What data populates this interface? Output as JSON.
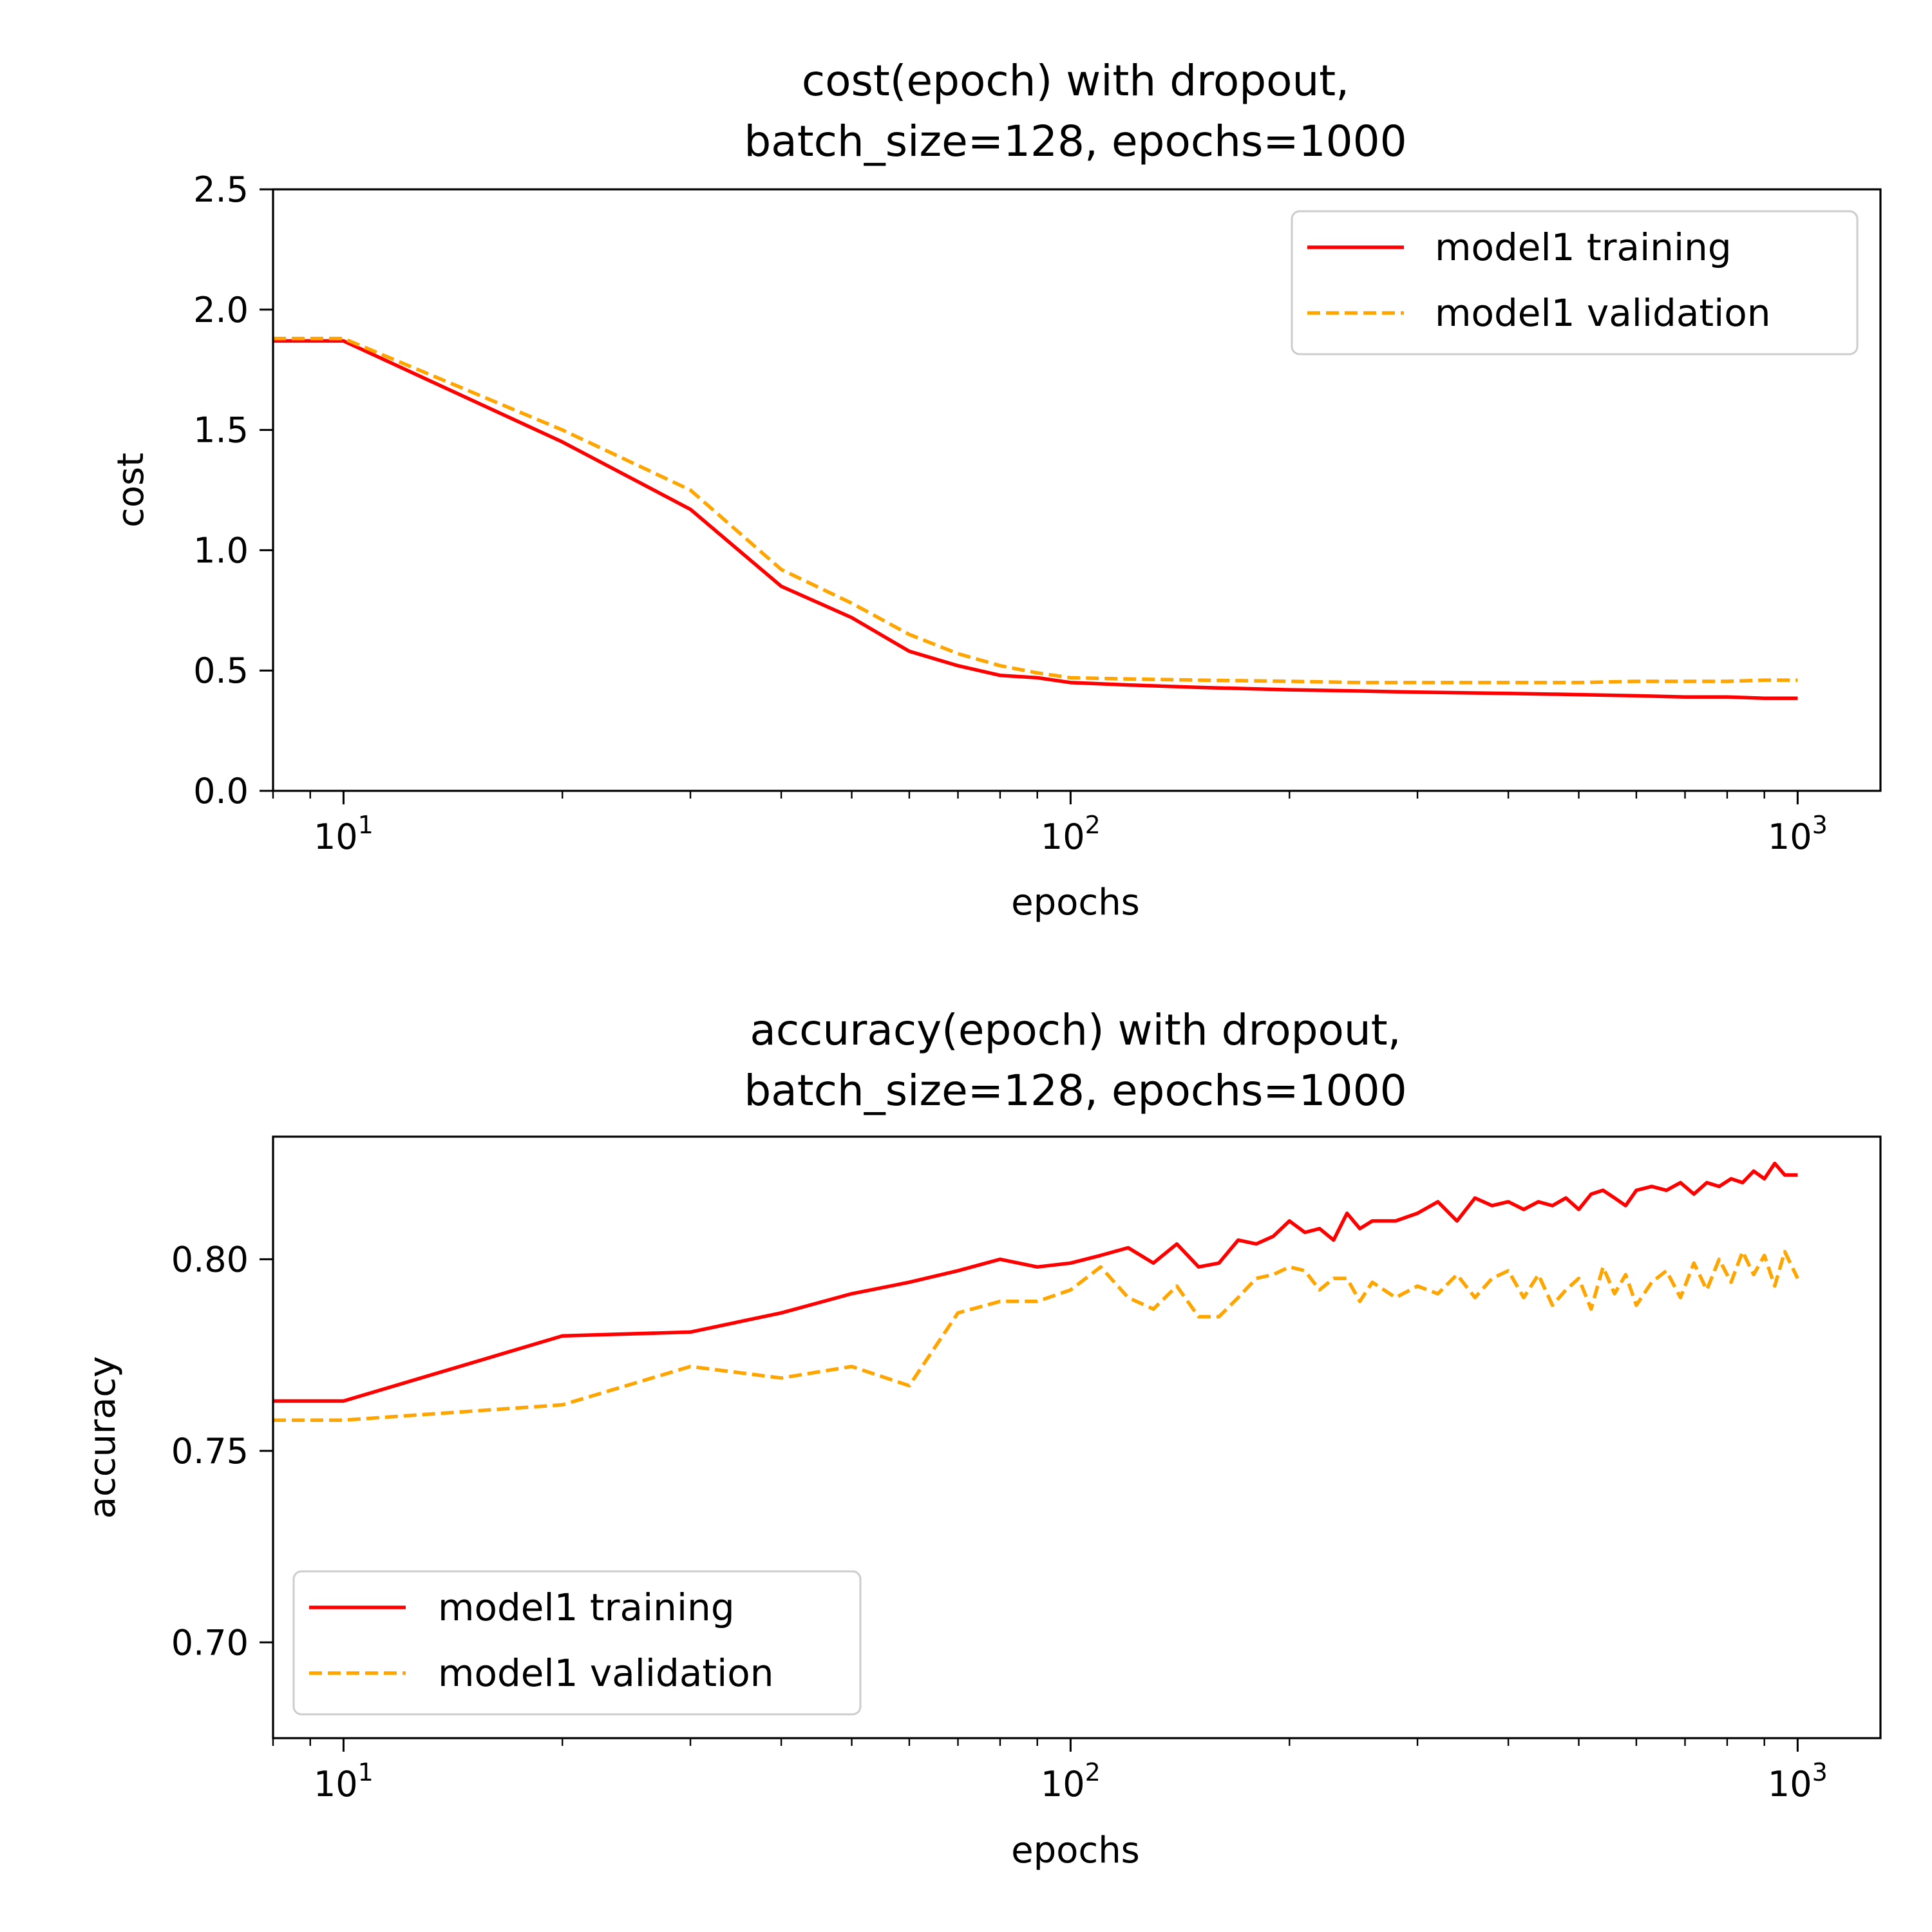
{
  "colors": {
    "training": "#ff0000",
    "validation": "#ffa500",
    "axes": "#000000",
    "background": "#ffffff"
  },
  "chart_data": [
    {
      "type": "line",
      "title_line1": "cost(epoch) with dropout,",
      "title_line2": "batch_size=128, epochs=1000",
      "xlabel": "epochs",
      "ylabel": "cost",
      "xscale": "log",
      "xlim": [
        8,
        1300
      ],
      "ylim": [
        0,
        2.5
      ],
      "xticks": [
        10,
        100,
        1000
      ],
      "xtick_labels": [
        {
          "base": "10",
          "exp": "1"
        },
        {
          "base": "10",
          "exp": "2"
        },
        {
          "base": "10",
          "exp": "3"
        }
      ],
      "yticks": [
        0,
        0.5,
        1.0,
        1.5,
        2.0,
        2.5
      ],
      "ytick_labels": [
        "0.0",
        "0.5",
        "1.0",
        "1.5",
        "2.0",
        "2.5"
      ],
      "legend_position": "top-right",
      "grid": false,
      "series": [
        {
          "name": "model1 training",
          "style": "solid",
          "x": [
            8,
            10,
            20,
            30,
            40,
            50,
            60,
            70,
            80,
            90,
            100,
            120,
            150,
            200,
            250,
            300,
            400,
            500,
            600,
            700,
            800,
            900,
            1000
          ],
          "y": [
            1.87,
            1.87,
            1.45,
            1.17,
            0.85,
            0.72,
            0.58,
            0.52,
            0.48,
            0.47,
            0.45,
            0.44,
            0.43,
            0.42,
            0.415,
            0.41,
            0.405,
            0.4,
            0.395,
            0.39,
            0.39,
            0.385,
            0.385
          ]
        },
        {
          "name": "model1 validation",
          "style": "dashed",
          "x": [
            8,
            10,
            20,
            30,
            40,
            50,
            60,
            70,
            80,
            90,
            100,
            120,
            150,
            200,
            250,
            300,
            400,
            500,
            600,
            700,
            800,
            900,
            1000
          ],
          "y": [
            1.88,
            1.88,
            1.5,
            1.25,
            0.92,
            0.78,
            0.65,
            0.57,
            0.52,
            0.49,
            0.47,
            0.465,
            0.46,
            0.455,
            0.45,
            0.45,
            0.45,
            0.45,
            0.455,
            0.455,
            0.455,
            0.46,
            0.46
          ]
        }
      ]
    },
    {
      "type": "line",
      "title_line1": "accuracy(epoch) with dropout,",
      "title_line2": "batch_size=128, epochs=1000",
      "xlabel": "epochs",
      "ylabel": "accuracy",
      "xscale": "log",
      "xlim": [
        8,
        1300
      ],
      "ylim": [
        0.675,
        0.832
      ],
      "xticks": [
        10,
        100,
        1000
      ],
      "xtick_labels": [
        {
          "base": "10",
          "exp": "1"
        },
        {
          "base": "10",
          "exp": "2"
        },
        {
          "base": "10",
          "exp": "3"
        }
      ],
      "yticks": [
        0.7,
        0.75,
        0.8
      ],
      "ytick_labels": [
        "0.70",
        "0.75",
        "0.80"
      ],
      "legend_position": "bottom-left",
      "grid": false,
      "series": [
        {
          "name": "model1 training",
          "style": "solid",
          "x": [
            8,
            10,
            20,
            30,
            40,
            50,
            60,
            70,
            80,
            90,
            100,
            110,
            120,
            130,
            140,
            150,
            160,
            170,
            180,
            190,
            200,
            210,
            220,
            230,
            240,
            250,
            260,
            280,
            300,
            320,
            340,
            360,
            380,
            400,
            420,
            440,
            460,
            480,
            500,
            520,
            540,
            560,
            580,
            600,
            630,
            660,
            690,
            720,
            750,
            780,
            810,
            840,
            870,
            900,
            930,
            960,
            1000
          ],
          "y": [
            0.763,
            0.763,
            0.78,
            0.781,
            0.786,
            0.791,
            0.794,
            0.797,
            0.8,
            0.798,
            0.799,
            0.801,
            0.803,
            0.799,
            0.804,
            0.798,
            0.799,
            0.805,
            0.804,
            0.806,
            0.81,
            0.807,
            0.808,
            0.805,
            0.812,
            0.808,
            0.81,
            0.81,
            0.812,
            0.815,
            0.81,
            0.816,
            0.814,
            0.815,
            0.813,
            0.815,
            0.814,
            0.816,
            0.813,
            0.817,
            0.818,
            0.816,
            0.814,
            0.818,
            0.819,
            0.818,
            0.82,
            0.817,
            0.82,
            0.819,
            0.821,
            0.82,
            0.823,
            0.821,
            0.825,
            0.822,
            0.822
          ]
        },
        {
          "name": "model1 validation",
          "style": "dashed",
          "x": [
            8,
            10,
            20,
            30,
            40,
            50,
            60,
            70,
            80,
            90,
            100,
            110,
            120,
            130,
            140,
            150,
            160,
            170,
            180,
            190,
            200,
            210,
            220,
            230,
            240,
            250,
            260,
            280,
            300,
            320,
            340,
            360,
            380,
            400,
            420,
            440,
            460,
            480,
            500,
            520,
            540,
            560,
            580,
            600,
            630,
            660,
            690,
            720,
            750,
            780,
            810,
            840,
            870,
            900,
            930,
            960,
            1000
          ],
          "y": [
            0.758,
            0.758,
            0.762,
            0.772,
            0.769,
            0.772,
            0.767,
            0.786,
            0.789,
            0.789,
            0.792,
            0.798,
            0.79,
            0.787,
            0.793,
            0.785,
            0.785,
            0.79,
            0.795,
            0.796,
            0.798,
            0.797,
            0.792,
            0.795,
            0.795,
            0.789,
            0.794,
            0.79,
            0.793,
            0.791,
            0.796,
            0.79,
            0.795,
            0.797,
            0.79,
            0.796,
            0.788,
            0.792,
            0.795,
            0.787,
            0.798,
            0.791,
            0.796,
            0.788,
            0.794,
            0.797,
            0.79,
            0.799,
            0.792,
            0.8,
            0.794,
            0.802,
            0.796,
            0.801,
            0.793,
            0.802,
            0.795
          ]
        }
      ]
    }
  ]
}
